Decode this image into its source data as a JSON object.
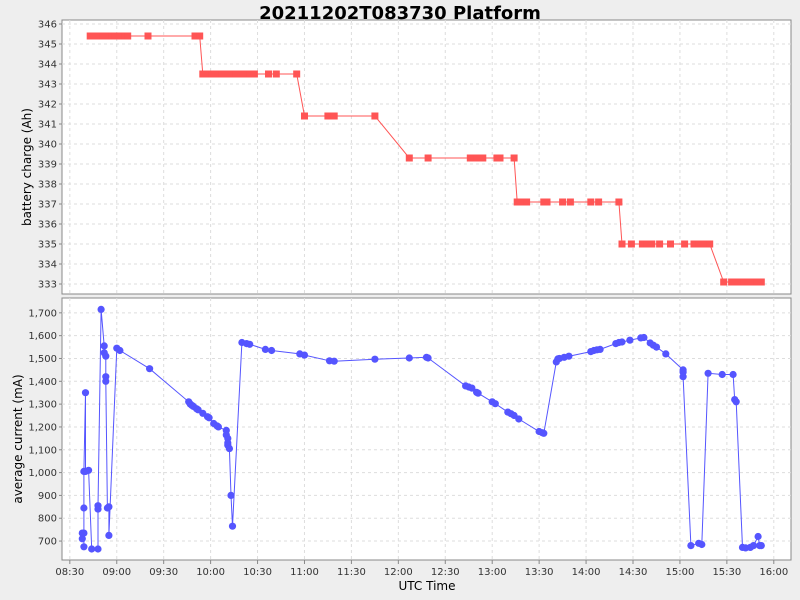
{
  "title": "20211202T083730 Platform",
  "chart_data": [
    {
      "type": "line",
      "ylabel": "battery charge (Ah)",
      "ylim": [
        332.5,
        346.2
      ],
      "yticks": [
        333,
        334,
        335,
        336,
        337,
        338,
        339,
        340,
        341,
        342,
        343,
        344,
        345,
        346
      ],
      "ytick_labels": [
        "333",
        "334",
        "335",
        "336",
        "337",
        "338",
        "339",
        "340",
        "341",
        "342",
        "343",
        "344",
        "345",
        "346"
      ],
      "color": "#ff5555",
      "marker": "square",
      "points": [
        [
          "08:43",
          345.4
        ],
        [
          "08:45",
          345.4
        ],
        [
          "08:47",
          345.4
        ],
        [
          "08:49",
          345.4
        ],
        [
          "08:51",
          345.4
        ],
        [
          "08:53",
          345.4
        ],
        [
          "08:55",
          345.4
        ],
        [
          "08:57",
          345.4
        ],
        [
          "08:59",
          345.4
        ],
        [
          "09:01",
          345.4
        ],
        [
          "09:05",
          345.4
        ],
        [
          "09:07",
          345.4
        ],
        [
          "09:20",
          345.4
        ],
        [
          "09:50",
          345.4
        ],
        [
          "09:53",
          345.4
        ],
        [
          "09:55",
          343.5
        ],
        [
          "09:58",
          343.5
        ],
        [
          "10:01",
          343.5
        ],
        [
          "10:04",
          343.5
        ],
        [
          "10:07",
          343.5
        ],
        [
          "10:10",
          343.5
        ],
        [
          "10:13",
          343.5
        ],
        [
          "10:16",
          343.5
        ],
        [
          "10:19",
          343.5
        ],
        [
          "10:22",
          343.5
        ],
        [
          "10:25",
          343.5
        ],
        [
          "10:28",
          343.5
        ],
        [
          "10:37",
          343.5
        ],
        [
          "10:42",
          343.5
        ],
        [
          "10:55",
          343.5
        ],
        [
          "11:00",
          341.4
        ],
        [
          "11:15",
          341.4
        ],
        [
          "11:19",
          341.4
        ],
        [
          "11:45",
          341.4
        ],
        [
          "12:07",
          339.3
        ],
        [
          "12:19",
          339.3
        ],
        [
          "12:46",
          339.3
        ],
        [
          "12:50",
          339.3
        ],
        [
          "12:54",
          339.3
        ],
        [
          "13:03",
          339.3
        ],
        [
          "13:05",
          339.3
        ],
        [
          "13:14",
          339.3
        ],
        [
          "13:16",
          337.1
        ],
        [
          "13:18",
          337.1
        ],
        [
          "13:22",
          337.1
        ],
        [
          "13:33",
          337.1
        ],
        [
          "13:35",
          337.1
        ],
        [
          "13:45",
          337.1
        ],
        [
          "13:50",
          337.1
        ],
        [
          "14:03",
          337.1
        ],
        [
          "14:08",
          337.1
        ],
        [
          "14:21",
          337.1
        ],
        [
          "14:23",
          335.0
        ],
        [
          "14:29",
          335.0
        ],
        [
          "14:36",
          335.0
        ],
        [
          "14:39",
          335.0
        ],
        [
          "14:42",
          335.0
        ],
        [
          "14:47",
          335.0
        ],
        [
          "14:54",
          335.0
        ],
        [
          "15:03",
          335.0
        ],
        [
          "15:09",
          335.0
        ],
        [
          "15:12",
          335.0
        ],
        [
          "15:15",
          335.0
        ],
        [
          "15:19",
          335.0
        ],
        [
          "15:28",
          333.1
        ],
        [
          "15:33",
          333.1
        ],
        [
          "15:37",
          333.1
        ],
        [
          "15:41",
          333.1
        ],
        [
          "15:45",
          333.1
        ],
        [
          "15:49",
          333.1
        ],
        [
          "15:52",
          333.1
        ]
      ]
    },
    {
      "type": "line",
      "ylabel": "average current (mA)",
      "ylim": [
        617,
        1765
      ],
      "yticks": [
        700,
        800,
        900,
        1000,
        1100,
        1200,
        1300,
        1400,
        1500,
        1600,
        1700
      ],
      "ytick_labels": [
        "700",
        "800",
        "900",
        "1,000",
        "1,100",
        "1,200",
        "1,300",
        "1,400",
        "1,500",
        "1,600",
        "1,700"
      ],
      "xlabel": "UTC Time",
      "xlim": [
        "08:25",
        "16:11"
      ],
      "xticks": [
        "08:30",
        "09:00",
        "09:30",
        "10:00",
        "10:30",
        "11:00",
        "11:30",
        "12:00",
        "12:30",
        "13:00",
        "13:30",
        "14:00",
        "14:30",
        "15:00",
        "15:30",
        "16:00"
      ],
      "color": "#5555ff",
      "marker": "circle",
      "points": [
        [
          "08:38",
          710
        ],
        [
          "08:38",
          735
        ],
        [
          "08:39",
          735
        ],
        [
          "08:39",
          675
        ],
        [
          "08:39",
          845
        ],
        [
          "08:39",
          1005
        ],
        [
          "08:40",
          1350
        ],
        [
          "08:40",
          1005
        ],
        [
          "08:42",
          1010
        ],
        [
          "08:44",
          665
        ],
        [
          "08:48",
          665
        ],
        [
          "08:48",
          840
        ],
        [
          "08:48",
          855
        ],
        [
          "08:50",
          1715
        ],
        [
          "08:52",
          1555
        ],
        [
          "08:52",
          1525
        ],
        [
          "08:53",
          1510
        ],
        [
          "08:53",
          1420
        ],
        [
          "08:53",
          1400
        ],
        [
          "08:54",
          845
        ],
        [
          "08:55",
          850
        ],
        [
          "08:55",
          725
        ],
        [
          "09:00",
          1545
        ],
        [
          "09:02",
          1535
        ],
        [
          "09:21",
          1455
        ],
        [
          "09:46",
          1310
        ],
        [
          "09:47",
          1300
        ],
        [
          "09:48",
          1295
        ],
        [
          "09:49",
          1290
        ],
        [
          "09:51",
          1280
        ],
        [
          "09:52",
          1275
        ],
        [
          "09:55",
          1260
        ],
        [
          "09:58",
          1245
        ],
        [
          "09:59",
          1240
        ],
        [
          "10:02",
          1215
        ],
        [
          "10:04",
          1205
        ],
        [
          "10:05",
          1200
        ],
        [
          "10:10",
          1185
        ],
        [
          "10:10",
          1165
        ],
        [
          "10:11",
          1150
        ],
        [
          "10:11",
          1130
        ],
        [
          "10:11",
          1120
        ],
        [
          "10:12",
          1105
        ],
        [
          "10:13",
          900
        ],
        [
          "10:14",
          765
        ],
        [
          "10:20",
          1570
        ],
        [
          "10:23",
          1565
        ],
        [
          "10:25",
          1562
        ],
        [
          "10:35",
          1540
        ],
        [
          "10:39",
          1535
        ],
        [
          "10:57",
          1520
        ],
        [
          "11:00",
          1515
        ],
        [
          "11:16",
          1490
        ],
        [
          "11:19",
          1488
        ],
        [
          "11:45",
          1497
        ],
        [
          "12:07",
          1502
        ],
        [
          "12:18",
          1505
        ],
        [
          "12:19",
          1502
        ],
        [
          "12:43",
          1380
        ],
        [
          "12:45",
          1375
        ],
        [
          "12:47",
          1370
        ],
        [
          "12:50",
          1352
        ],
        [
          "12:51",
          1348
        ],
        [
          "13:00",
          1310
        ],
        [
          "13:02",
          1302
        ],
        [
          "13:10",
          1265
        ],
        [
          "13:12",
          1258
        ],
        [
          "13:14",
          1250
        ],
        [
          "13:17",
          1235
        ],
        [
          "13:30",
          1180
        ],
        [
          "13:32",
          1175
        ],
        [
          "13:33",
          1172
        ],
        [
          "13:41",
          1485
        ],
        [
          "13:42",
          1498
        ],
        [
          "13:43",
          1500
        ],
        [
          "13:46",
          1505
        ],
        [
          "13:49",
          1510
        ],
        [
          "14:03",
          1530
        ],
        [
          "14:05",
          1535
        ],
        [
          "14:07",
          1538
        ],
        [
          "14:09",
          1540
        ],
        [
          "14:19",
          1565
        ],
        [
          "14:21",
          1570
        ],
        [
          "14:23",
          1572
        ],
        [
          "14:28",
          1580
        ],
        [
          "14:35",
          1590
        ],
        [
          "14:37",
          1592
        ],
        [
          "14:41",
          1568
        ],
        [
          "14:43",
          1558
        ],
        [
          "14:45",
          1550
        ],
        [
          "14:51",
          1520
        ],
        [
          "15:02",
          1450
        ],
        [
          "15:02",
          1440
        ],
        [
          "15:02",
          1420
        ],
        [
          "15:07",
          680
        ],
        [
          "15:12",
          690
        ],
        [
          "15:14",
          685
        ],
        [
          "15:18",
          1435
        ],
        [
          "15:27",
          1430
        ],
        [
          "15:34",
          1430
        ],
        [
          "15:35",
          1320
        ],
        [
          "15:36",
          1310
        ],
        [
          "15:40",
          672
        ],
        [
          "15:42",
          670
        ],
        [
          "15:45",
          672
        ],
        [
          "15:47",
          680
        ],
        [
          "15:50",
          720
        ],
        [
          "15:51",
          680
        ],
        [
          "15:52",
          680
        ]
      ]
    }
  ]
}
